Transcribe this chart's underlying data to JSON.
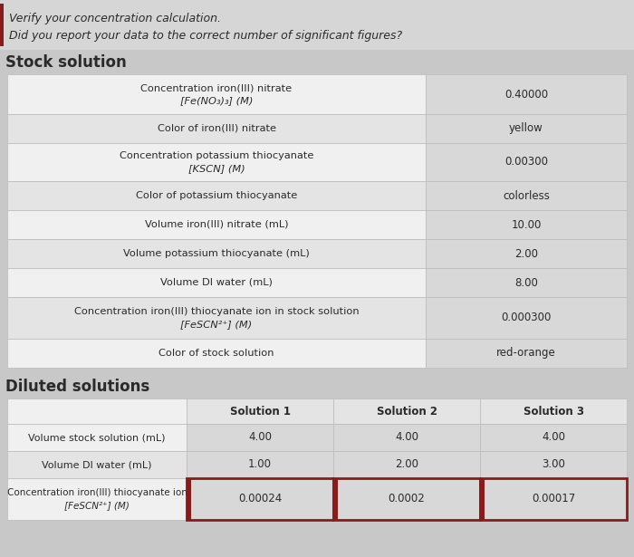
{
  "header_text_1": "Verify your concentration calculation.",
  "header_text_2": "Did you report your data to the correct number of significant figures?",
  "header_bg": "#d6d6d6",
  "main_bg": "#c8c8c8",
  "accent_color": "#8b1a1a",
  "text_color": "#2a2a2a",
  "label_color": "#2a2a2a",
  "stock_section_title": "Stock solution",
  "diluted_section_title": "Diluted solutions",
  "label_cell_bg_even": "#f0f0f0",
  "label_cell_bg_odd": "#e4e4e4",
  "value_cell_bg": "#d8d8d8",
  "diluted_header_bg": "#e4e4e4",
  "diluted_value_bg": "#d8d8d8",
  "border_color": "#bbbbbb",
  "stock_rows": [
    {
      "label1": "Concentration iron(III) nitrate",
      "label2": "[Fe(NO₃)₃] (M)",
      "value": "0.40000"
    },
    {
      "label1": "Color of iron(III) nitrate",
      "label2": "",
      "value": "yellow"
    },
    {
      "label1": "Concentration potassium thiocyanate",
      "label2": "[KSCN] (M)",
      "value": "0.00300"
    },
    {
      "label1": "Color of potassium thiocyanate",
      "label2": "",
      "value": "colorless"
    },
    {
      "label1": "Volume iron(III) nitrate (mL)",
      "label2": "",
      "value": "10.00"
    },
    {
      "label1": "Volume potassium thiocyanate (mL)",
      "label2": "",
      "value": "2.00"
    },
    {
      "label1": "Volume DI water (mL)",
      "label2": "",
      "value": "8.00"
    },
    {
      "label1": "Concentration iron(III) thiocyanate ion in stock solution",
      "label2": "[FeSCN²⁺] (M)",
      "value": "0.000300"
    },
    {
      "label1": "Color of stock solution",
      "label2": "",
      "value": "red-orange"
    }
  ],
  "diluted_headers": [
    "Solution 1",
    "Solution 2",
    "Solution 3"
  ],
  "diluted_rows": [
    {
      "label1": "Volume stock solution (mL)",
      "label2": "",
      "values": [
        "4.00",
        "4.00",
        "4.00"
      ],
      "highlight": false
    },
    {
      "label1": "Volume DI water (mL)",
      "label2": "",
      "values": [
        "1.00",
        "2.00",
        "3.00"
      ],
      "highlight": false
    },
    {
      "label1": "Concentration iron(III) thiocyanate ion",
      "label2": "[FeSCN²⁺] (M)",
      "values": [
        "0.00024",
        "0.0002",
        "0.00017"
      ],
      "highlight": true
    }
  ]
}
